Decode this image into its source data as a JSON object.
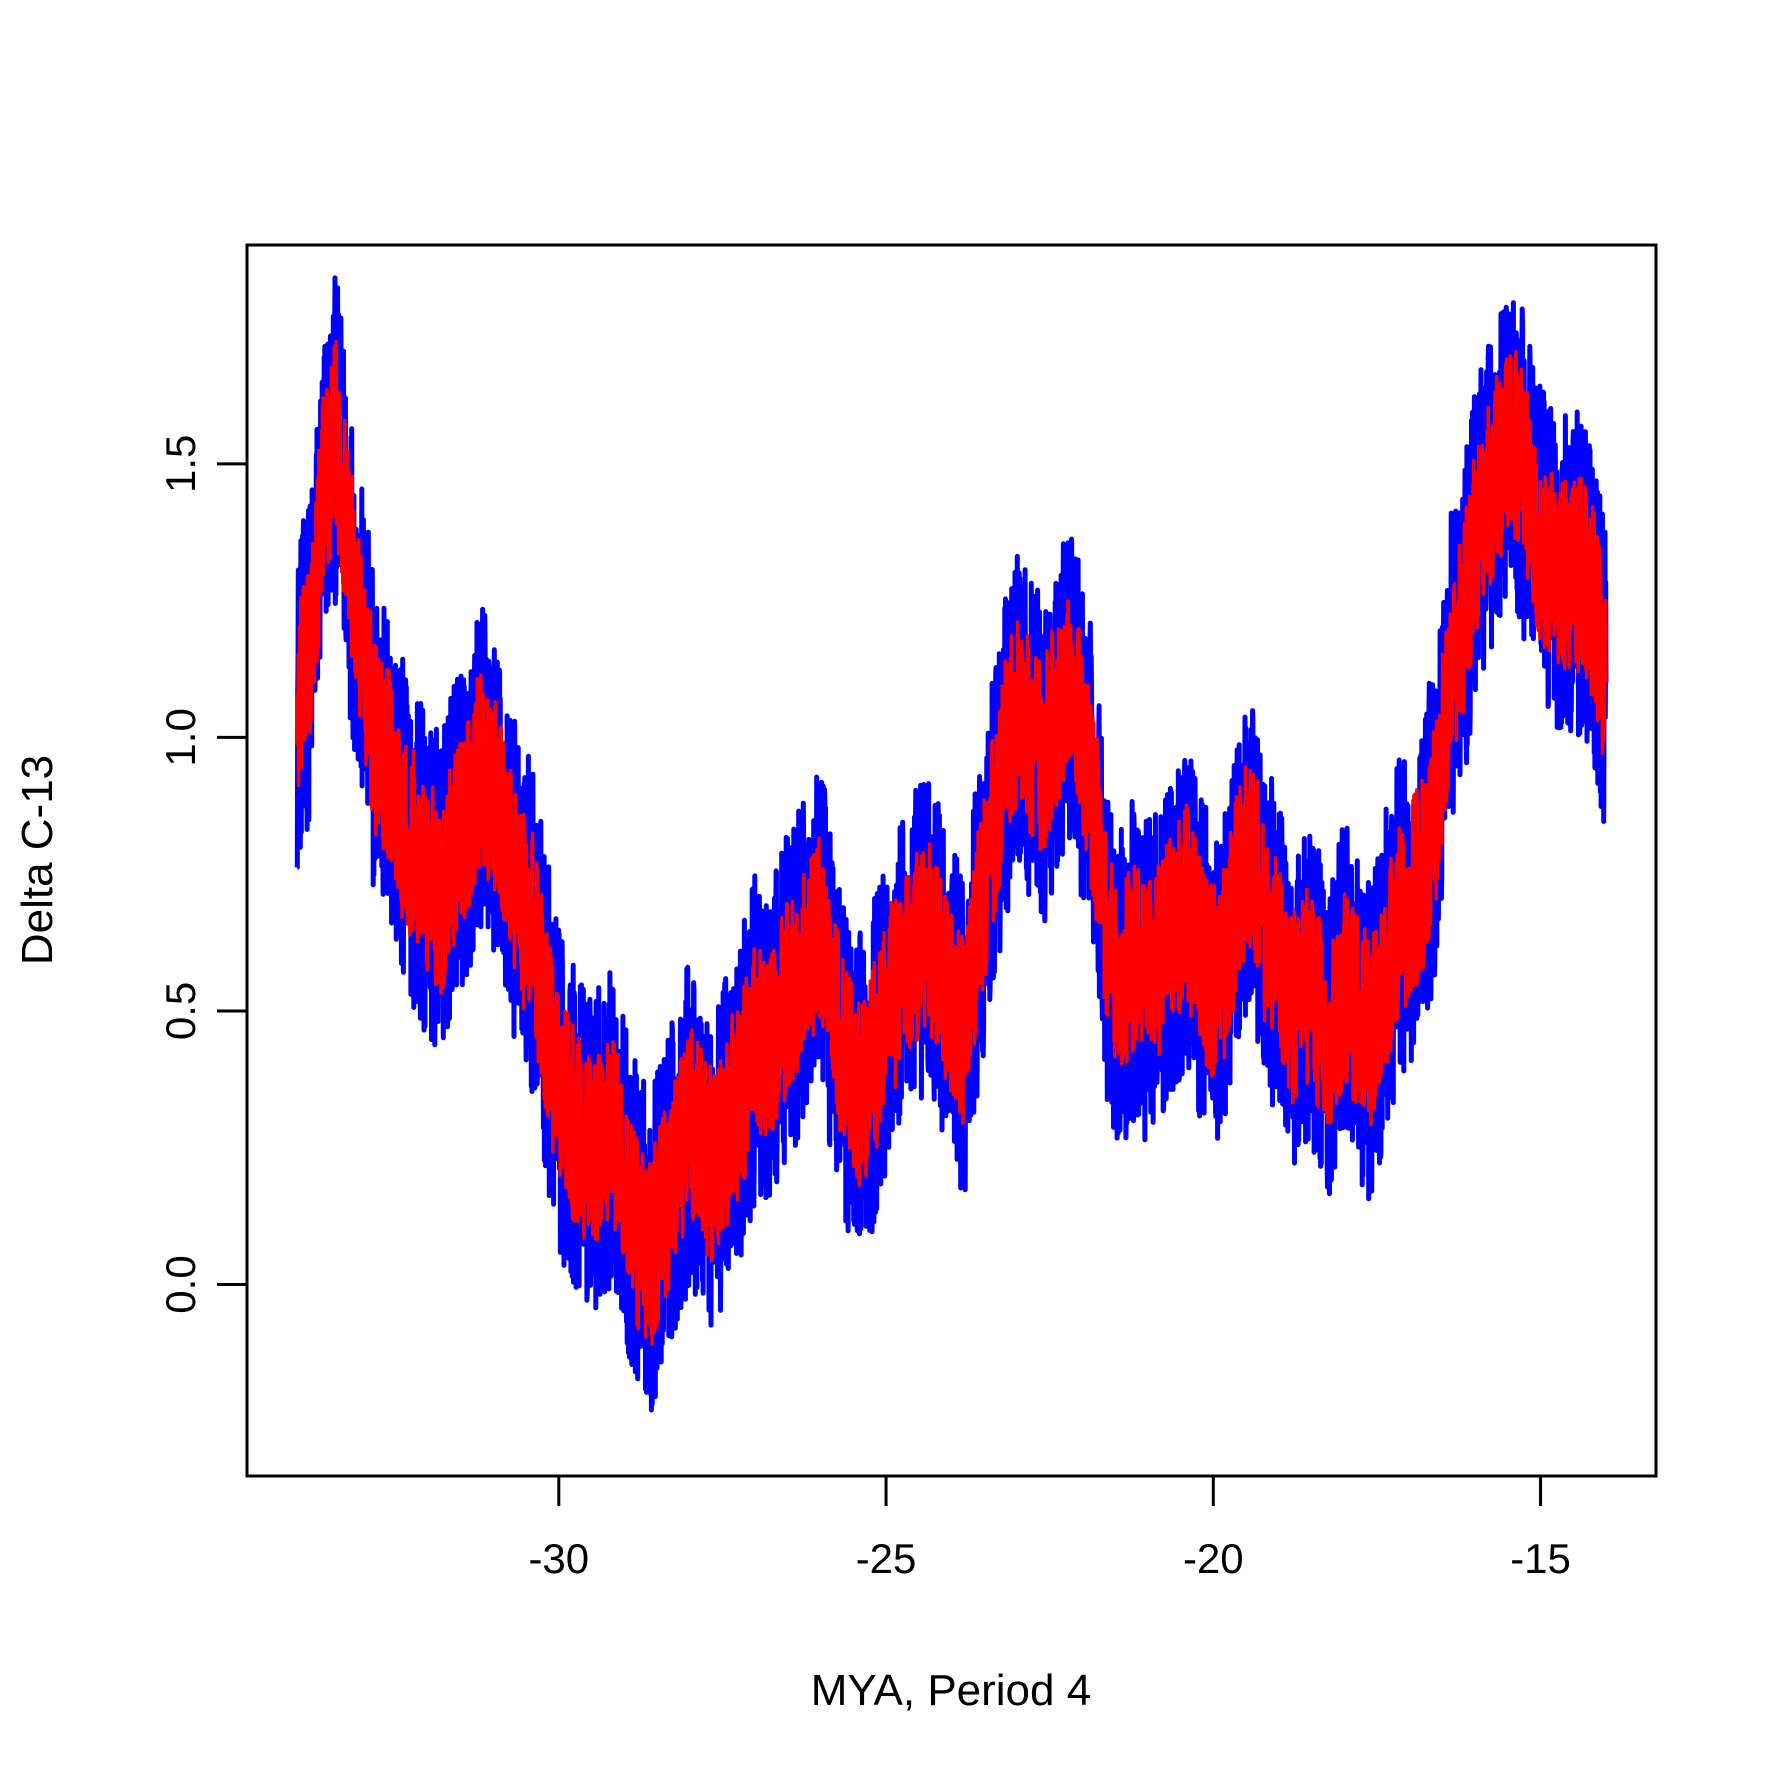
{
  "chart_data": {
    "type": "line",
    "title": "",
    "xlabel": "MYA, Period 4",
    "ylabel": "Delta C-13",
    "xlim": [
      -34.0,
      -14.0
    ],
    "ylim": [
      -0.35,
      1.9
    ],
    "x_ticks": [
      -30,
      -25,
      -20,
      -15
    ],
    "x_tick_labels": [
      "-30",
      "-25",
      "-20",
      "-15"
    ],
    "y_ticks": [
      0.0,
      0.5,
      1.0,
      1.5
    ],
    "y_tick_labels": [
      "0.0",
      "0.5",
      "1.0",
      "1.5"
    ],
    "grid": false,
    "legend": "none",
    "series": [
      {
        "color": "#0000ff",
        "x": [
          -34.0,
          -33.8,
          -33.6,
          -33.4,
          -33.2,
          -33.0,
          -32.8,
          -32.6,
          -32.4,
          -32.2,
          -32.0,
          -31.8,
          -31.6,
          -31.4,
          -31.2,
          -31.0,
          -30.8,
          -30.6,
          -30.4,
          -30.2,
          -30.0,
          -29.8,
          -29.6,
          -29.4,
          -29.2,
          -29.0,
          -28.8,
          -28.6,
          -28.4,
          -28.2,
          -28.0,
          -27.8,
          -27.6,
          -27.4,
          -27.2,
          -27.0,
          -26.8,
          -26.6,
          -26.4,
          -26.2,
          -26.0,
          -25.8,
          -25.6,
          -25.4,
          -25.2,
          -25.0,
          -24.8,
          -24.6,
          -24.4,
          -24.2,
          -24.0,
          -23.8,
          -23.6,
          -23.4,
          -23.2,
          -23.0,
          -22.8,
          -22.6,
          -22.4,
          -22.2,
          -22.0,
          -21.8,
          -21.6,
          -21.4,
          -21.2,
          -21.0,
          -20.8,
          -20.6,
          -20.4,
          -20.2,
          -20.0,
          -19.8,
          -19.6,
          -19.4,
          -19.2,
          -19.0,
          -18.8,
          -18.6,
          -18.4,
          -18.2,
          -18.0,
          -17.8,
          -17.6,
          -17.4,
          -17.2,
          -17.0,
          -16.8,
          -16.6,
          -16.4,
          -16.2,
          -16.0,
          -15.8,
          -15.6,
          -15.4,
          -15.2,
          -15.0,
          -14.8,
          -14.6,
          -14.4,
          -14.2,
          -14.0
        ],
        "values": [
          1.05,
          1.15,
          1.45,
          1.55,
          1.35,
          1.15,
          1.0,
          0.95,
          0.85,
          0.8,
          0.75,
          0.7,
          0.8,
          0.85,
          0.95,
          0.9,
          0.8,
          0.7,
          0.65,
          0.5,
          0.35,
          0.3,
          0.25,
          0.25,
          0.3,
          0.2,
          0.1,
          0.05,
          0.15,
          0.2,
          0.3,
          0.25,
          0.2,
          0.3,
          0.35,
          0.45,
          0.4,
          0.5,
          0.55,
          0.6,
          0.65,
          0.5,
          0.4,
          0.35,
          0.4,
          0.5,
          0.55,
          0.6,
          0.65,
          0.6,
          0.5,
          0.45,
          0.65,
          0.8,
          0.95,
          1.05,
          1.0,
          0.95,
          1.05,
          1.1,
          1.0,
          0.85,
          0.6,
          0.55,
          0.6,
          0.55,
          0.6,
          0.65,
          0.7,
          0.6,
          0.55,
          0.6,
          0.75,
          0.8,
          0.65,
          0.6,
          0.5,
          0.55,
          0.5,
          0.45,
          0.55,
          0.5,
          0.45,
          0.55,
          0.65,
          0.7,
          0.75,
          0.85,
          1.1,
          1.2,
          1.35,
          1.45,
          1.5,
          1.55,
          1.45,
          1.35,
          1.3,
          1.3,
          1.3,
          1.25,
          1.1
        ],
        "noise_amplitude": 0.3
      },
      {
        "color": "#ff0000",
        "x": [
          -34.0,
          -33.8,
          -33.6,
          -33.4,
          -33.2,
          -33.0,
          -32.8,
          -32.6,
          -32.4,
          -32.2,
          -32.0,
          -31.8,
          -31.6,
          -31.4,
          -31.2,
          -31.0,
          -30.8,
          -30.6,
          -30.4,
          -30.2,
          -30.0,
          -29.8,
          -29.6,
          -29.4,
          -29.2,
          -29.0,
          -28.8,
          -28.6,
          -28.4,
          -28.2,
          -28.0,
          -27.8,
          -27.6,
          -27.4,
          -27.2,
          -27.0,
          -26.8,
          -26.6,
          -26.4,
          -26.2,
          -26.0,
          -25.8,
          -25.6,
          -25.4,
          -25.2,
          -25.0,
          -24.8,
          -24.6,
          -24.4,
          -24.2,
          -24.0,
          -23.8,
          -23.6,
          -23.4,
          -23.2,
          -23.0,
          -22.8,
          -22.6,
          -22.4,
          -22.2,
          -22.0,
          -21.8,
          -21.6,
          -21.4,
          -21.2,
          -21.0,
          -20.8,
          -20.6,
          -20.4,
          -20.2,
          -20.0,
          -19.8,
          -19.6,
          -19.4,
          -19.2,
          -19.0,
          -18.8,
          -18.6,
          -18.4,
          -18.2,
          -18.0,
          -17.8,
          -17.6,
          -17.4,
          -17.2,
          -17.0,
          -16.8,
          -16.6,
          -16.4,
          -16.2,
          -16.0,
          -15.8,
          -15.6,
          -15.4,
          -15.2,
          -15.0,
          -14.8,
          -14.6,
          -14.4,
          -14.2,
          -14.0
        ],
        "values": [
          1.05,
          1.15,
          1.45,
          1.55,
          1.35,
          1.15,
          1.0,
          0.95,
          0.85,
          0.8,
          0.75,
          0.7,
          0.8,
          0.85,
          0.95,
          0.9,
          0.8,
          0.7,
          0.65,
          0.5,
          0.35,
          0.3,
          0.25,
          0.25,
          0.3,
          0.2,
          0.1,
          0.05,
          0.15,
          0.2,
          0.3,
          0.25,
          0.2,
          0.3,
          0.35,
          0.45,
          0.4,
          0.5,
          0.55,
          0.6,
          0.65,
          0.5,
          0.4,
          0.35,
          0.4,
          0.5,
          0.55,
          0.6,
          0.65,
          0.6,
          0.5,
          0.45,
          0.65,
          0.8,
          0.95,
          1.05,
          1.0,
          0.95,
          1.05,
          1.1,
          1.0,
          0.85,
          0.6,
          0.55,
          0.6,
          0.55,
          0.6,
          0.65,
          0.7,
          0.6,
          0.55,
          0.6,
          0.75,
          0.8,
          0.65,
          0.6,
          0.5,
          0.55,
          0.5,
          0.45,
          0.55,
          0.5,
          0.45,
          0.55,
          0.65,
          0.7,
          0.75,
          0.85,
          1.1,
          1.2,
          1.35,
          1.45,
          1.5,
          1.55,
          1.45,
          1.35,
          1.3,
          1.3,
          1.3,
          1.25,
          1.1
        ],
        "noise_amplitude": 0.18
      }
    ]
  }
}
